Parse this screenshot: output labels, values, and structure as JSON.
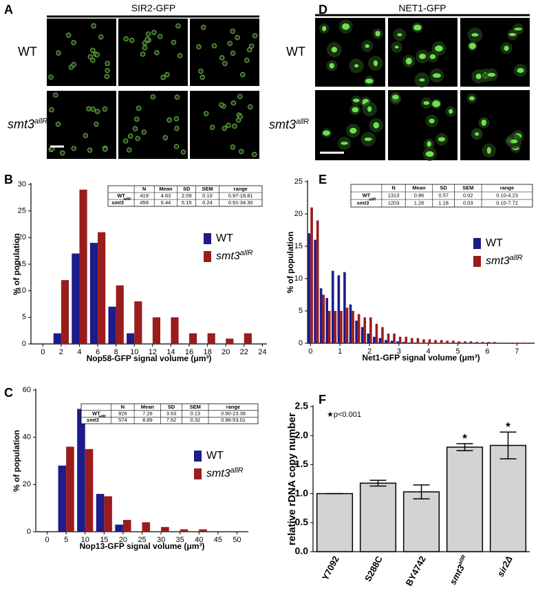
{
  "micrographs": [
    {
      "letter": "A",
      "title": "SIR2-GFP",
      "rows": [
        {
          "label": "WT"
        },
        {
          "label": "smt3",
          "sup": "allR"
        }
      ]
    },
    {
      "letter": "D",
      "title": "NET1-GFP",
      "rows": [
        {
          "label": "WT"
        },
        {
          "label": "smt3",
          "sup": "allR"
        }
      ]
    }
  ],
  "chart_data": [
    {
      "type": "grouped_bar",
      "letter": "B",
      "x": [
        2,
        4,
        6,
        8,
        10,
        12,
        14,
        16,
        18,
        20,
        22
      ],
      "series": [
        {
          "name": "WT",
          "color": "#1c1c8a",
          "values": [
            2,
            17,
            19,
            7,
            2,
            0,
            0,
            0,
            0,
            0,
            0
          ]
        },
        {
          "name": "smt3",
          "name_sup": "allR",
          "color": "#9b1c1c",
          "values": [
            12,
            29,
            21,
            11,
            8,
            5,
            5,
            2,
            2,
            1,
            2
          ]
        }
      ],
      "xlim": [
        -1.3,
        24.5
      ],
      "xticks": [
        0,
        2,
        4,
        6,
        8,
        10,
        12,
        14,
        16,
        18,
        20,
        22,
        24
      ],
      "ylim": [
        0,
        30
      ],
      "yticks": [
        0,
        5,
        10,
        15,
        20,
        25,
        30
      ],
      "xlabel": "Nop58-GFP signal volume (μm³)",
      "ylabel": "% of population",
      "table": {
        "header": [
          "N",
          "Mean",
          "SD",
          "SEM",
          "range"
        ],
        "rows": [
          {
            "label": "WT",
            "cells": [
              "419",
              "4.63",
              "2.09",
              "0.10",
              "0.97-18.81"
            ]
          },
          {
            "label": "smt3",
            "sup": "allR",
            "cells": [
              "459",
              "6.44",
              "5.15",
              "0.24",
              "0.91-34.30"
            ]
          }
        ]
      }
    },
    {
      "type": "grouped_bar",
      "letter": "C",
      "x": [
        5,
        10,
        15,
        20,
        25,
        30,
        35,
        40
      ],
      "series": [
        {
          "name": "WT",
          "color": "#1c1c8a",
          "values": [
            28,
            52,
            16,
            3,
            0,
            0,
            0,
            0
          ]
        },
        {
          "name": "smt3",
          "name_sup": "allR",
          "color": "#9b1c1c",
          "values": [
            36,
            35,
            15,
            5,
            4,
            2,
            1,
            1
          ]
        }
      ],
      "xlim": [
        -3,
        53
      ],
      "xticks": [
        0,
        5,
        10,
        15,
        20,
        25,
        30,
        35,
        40,
        45,
        50
      ],
      "ylim": [
        0,
        60
      ],
      "yticks": [
        0,
        20,
        40,
        60
      ],
      "xlabel": "Nop13-GFP signal volume (μm³)",
      "ylabel": "% of population",
      "table": {
        "header": [
          "N",
          "Mean",
          "SD",
          "SEM",
          "range"
        ],
        "rows": [
          {
            "label": "WT",
            "cells": [
              "826",
              "7.26",
              "3.63",
              "0.13",
              "0.90-23.38"
            ]
          },
          {
            "label": "smt3",
            "sup": "allR",
            "cells": [
              "574",
              "8.89",
              "7.62",
              "0.32",
              "0.96-53.01"
            ]
          }
        ]
      }
    },
    {
      "type": "grouped_bar",
      "letter": "E",
      "x": [
        0,
        0.2,
        0.4,
        0.6,
        0.8,
        1,
        1.2,
        1.4,
        1.6,
        1.8,
        2,
        2.2,
        2.4,
        2.6,
        2.8,
        3,
        3.2,
        3.4,
        3.6,
        3.8,
        4,
        4.2,
        4.4,
        4.6,
        4.8,
        5,
        5.2,
        5.4,
        5.6,
        5.8,
        6,
        6.2,
        6.4,
        6.6,
        6.8,
        7,
        7.2,
        7.4
      ],
      "series": [
        {
          "name": "WT",
          "color": "#1c1c8a",
          "values": [
            17,
            16,
            8.5,
            7,
            11.2,
            10.5,
            11,
            6,
            3.5,
            2.5,
            1.5,
            1,
            0.8,
            0.5,
            0.4,
            0.3,
            0.2,
            0.1,
            0.1,
            0,
            0,
            0,
            0,
            0,
            0,
            0,
            0,
            0,
            0,
            0,
            0,
            0,
            0,
            0,
            0,
            0,
            0,
            0
          ]
        },
        {
          "name": "smt3",
          "name_sup": "allR",
          "color": "#9b1c1c",
          "values": [
            21,
            19,
            7.5,
            5,
            5,
            5,
            5.5,
            5,
            4.5,
            4,
            4,
            3,
            2.5,
            1.5,
            1.5,
            1,
            1,
            0.8,
            0.8,
            0.6,
            0.6,
            0.5,
            0.5,
            0.4,
            0.4,
            0.3,
            0.3,
            0.3,
            0.2,
            0.2,
            0.2,
            0.2,
            0.1,
            0.1,
            0.1,
            0.1,
            0.1,
            0.1
          ]
        }
      ],
      "xlim": [
        -0.1,
        7.6
      ],
      "xticks": [
        0,
        1,
        2,
        3,
        4,
        5,
        6,
        7
      ],
      "ylim": [
        0,
        25
      ],
      "yticks": [
        0,
        5,
        10,
        15,
        20,
        25
      ],
      "xlabel": "Net1-GFP signal volume (μm³)",
      "ylabel": "% of population",
      "table": {
        "header": [
          "N",
          "Mean",
          "SD",
          "SEM",
          "range"
        ],
        "rows": [
          {
            "label": "WT",
            "cells": [
              "1313",
              "0.86",
              "0.57",
              "0.02",
              "0.10-4.23"
            ]
          },
          {
            "label": "smt3",
            "sup": "allR",
            "cells": [
              "1203",
              "1.26",
              "1.18",
              "0.03",
              "0.10-7.72"
            ]
          }
        ]
      }
    },
    {
      "type": "bar",
      "letter": "F",
      "categories": [
        "Y7092",
        "S288C",
        "BY4742",
        "smt3",
        "sir2Δ"
      ],
      "category_sup": [
        null,
        null,
        null,
        "allR",
        null
      ],
      "category_italic": [
        false,
        false,
        false,
        true,
        true
      ],
      "values": [
        1.0,
        1.18,
        1.03,
        1.8,
        1.83
      ],
      "errors": [
        0,
        0.05,
        0.12,
        0.06,
        0.23
      ],
      "significant": [
        false,
        false,
        false,
        true,
        true
      ],
      "color": "#d3d3d3",
      "ylim": [
        0,
        2.5
      ],
      "yticks": [
        {
          "value": 0,
          "label": "0.0"
        },
        0.5,
        {
          "value": 1,
          "label": "1.0"
        },
        1.5,
        {
          "value": 2,
          "label": "2.0"
        },
        2.5
      ],
      "ylabel": "relative rDNA copy number",
      "sig_symbol": "★",
      "sig_label": "p<0.001"
    }
  ]
}
